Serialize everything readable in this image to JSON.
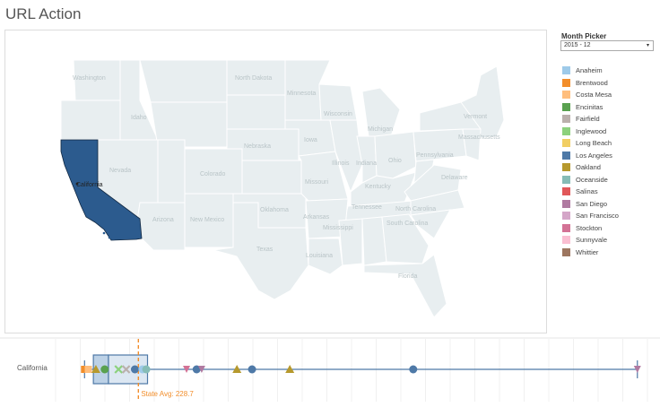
{
  "title": "URL Action",
  "filter": {
    "label": "Month Picker",
    "selected": "2015 - 12",
    "caret": "▾"
  },
  "legend": [
    {
      "name": "Anaheim",
      "color": "#9ecae9"
    },
    {
      "name": "Brentwood",
      "color": "#f28e2b"
    },
    {
      "name": "Costa Mesa",
      "color": "#ffbe7d"
    },
    {
      "name": "Encinitas",
      "color": "#59a14f"
    },
    {
      "name": "Fairfield",
      "color": "#bab0ac"
    },
    {
      "name": "Inglewood",
      "color": "#8cd17d"
    },
    {
      "name": "Long Beach",
      "color": "#f1ce63"
    },
    {
      "name": "Los Angeles",
      "color": "#4e79a7"
    },
    {
      "name": "Oakland",
      "color": "#b6992d"
    },
    {
      "name": "Oceanside",
      "color": "#86bcb6"
    },
    {
      "name": "Salinas",
      "color": "#e15759"
    },
    {
      "name": "San Diego",
      "color": "#b07aa1"
    },
    {
      "name": "San Francisco",
      "color": "#d4a6c8"
    },
    {
      "name": "Stockton",
      "color": "#d37295"
    },
    {
      "name": "Sunnyvale",
      "color": "#fabfd2"
    },
    {
      "name": "Whittier",
      "color": "#9d7660"
    }
  ],
  "map": {
    "selected_state": "California",
    "selected_color": "#2c5b8e",
    "state_labels": {
      "washington": "Washington",
      "idaho": "Idaho",
      "north_dakota": "North Dakota",
      "minnesota": "Minnesota",
      "wisconsin": "Wisconsin",
      "michigan": "Michigan",
      "vermont": "Vermont",
      "massachusetts": "Massachusetts",
      "nebraska": "Nebraska",
      "iowa": "Iowa",
      "nevada": "Nevada",
      "colorado": "Colorado",
      "illinois": "Illinois",
      "indiana": "Indiana",
      "ohio": "Ohio",
      "pennsylvania": "Pennsylvania",
      "delaware": "Delaware",
      "missouri": "Missouri",
      "kentucky": "Kentucky",
      "oklahoma": "Oklahoma",
      "arkansas": "Arkansas",
      "tennessee": "Tennessee",
      "north_carolina": "North Carolina",
      "south_carolina": "South Carolina",
      "arizona": "Arizona",
      "new_mexico": "New Mexico",
      "mississippi": "Mississippi",
      "texas": "Texas",
      "louisiana": "Louisiana",
      "florida": "Florida"
    }
  },
  "chart_data": {
    "type": "scatter",
    "row_label": "California",
    "reference_line": {
      "label": "State Avg: 228.7",
      "value": 228.7,
      "color": "#f28e2b"
    },
    "x_range": [
      -100,
      2250
    ],
    "box": {
      "whisker_low": 15,
      "q1": 50,
      "median": 110,
      "q3": 265,
      "whisker_high": 2210
    },
    "points": [
      {
        "city": "Brentwood",
        "value": 15,
        "shape": "square"
      },
      {
        "city": "Costa Mesa",
        "value": 30,
        "shape": "square"
      },
      {
        "city": "Oakland",
        "value": 60,
        "shape": "triangle"
      },
      {
        "city": "Encinitas",
        "value": 95,
        "shape": "circle"
      },
      {
        "city": "Inglewood",
        "value": 150,
        "shape": "cross"
      },
      {
        "city": "Fairfield",
        "value": 180,
        "shape": "cross"
      },
      {
        "city": "Los Angeles",
        "value": 215,
        "shape": "circle"
      },
      {
        "city": "Anaheim",
        "value": 245,
        "shape": "circle"
      },
      {
        "city": "Oceanside",
        "value": 260,
        "shape": "circle"
      },
      {
        "city": "Stockton",
        "value": 420,
        "shape": "triangle-down"
      },
      {
        "city": "Los Angeles",
        "value": 460,
        "shape": "circle"
      },
      {
        "city": "San Diego",
        "value": 480,
        "shape": "triangle-down"
      },
      {
        "city": "Oakland",
        "value": 620,
        "shape": "triangle"
      },
      {
        "city": "Los Angeles",
        "value": 680,
        "shape": "circle"
      },
      {
        "city": "Oakland",
        "value": 830,
        "shape": "triangle"
      },
      {
        "city": "Los Angeles",
        "value": 1320,
        "shape": "circle"
      },
      {
        "city": "San Diego",
        "value": 2210,
        "shape": "triangle-down"
      }
    ]
  }
}
